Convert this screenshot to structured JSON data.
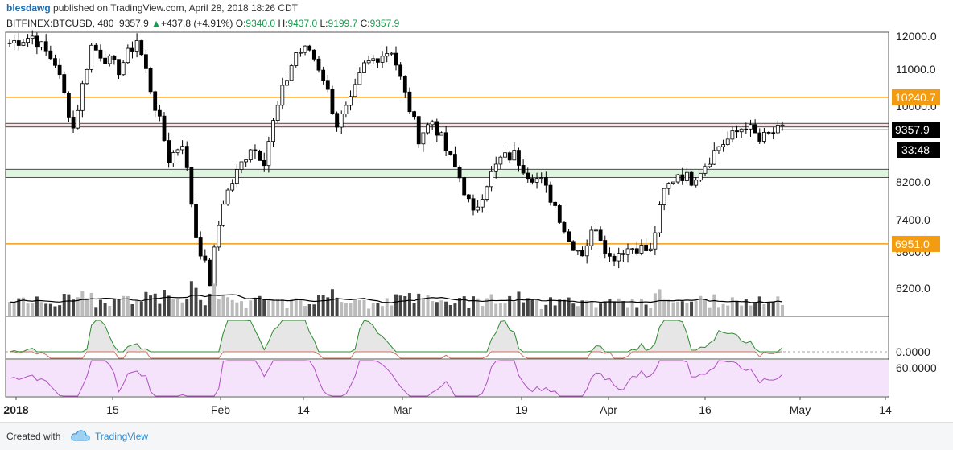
{
  "header": {
    "user": "blesdawg",
    "published": "published on TradingView.com, April 28, 2018 18:26 CDT",
    "symbol": "BITFINEX:BTCUSD, 480",
    "last": "9357.9",
    "change": "+437.8 (+4.91%)",
    "o_label": "O:",
    "o": "9340.0",
    "h_label": "H:",
    "h": "9437.0",
    "l_label": "L:",
    "l": "9199.7",
    "c_label": "C:",
    "c": "9357.9"
  },
  "footer": {
    "created": "Created with",
    "brand": "TradingView"
  },
  "colors": {
    "bg": "#ffffff",
    "candle": "#000000",
    "level": "#f39c12",
    "resistance_fill": "#f7e4e4",
    "support_fill": "#dff5df",
    "volume": "#444444",
    "osc_up": "#2e8b2e",
    "osc_down": "#d0705f",
    "rsi": "#b04fc1",
    "rsi_fill": "#f4e3fb",
    "label_dark": "#000000"
  },
  "chart_data": {
    "type": "candlestick",
    "x_ticks": [
      "2018",
      "15",
      "Feb",
      "14",
      "Mar",
      "19",
      "Apr",
      "16",
      "May",
      "14"
    ],
    "y_ticks": [
      "12000.0",
      "11000.0",
      "10000.0",
      "8200.0",
      "7400.0",
      "6800.0",
      "6200.0"
    ],
    "y_range": [
      5750,
      12100
    ],
    "price_labels": {
      "upper_level": "10240.7",
      "last": "9357.9",
      "countdown": "33:48",
      "lower_level": "6951.0"
    },
    "horizontal_levels": [
      10240.7,
      6951.0
    ],
    "zones": [
      {
        "name": "resistance",
        "low": 9430,
        "high": 9530
      },
      {
        "name": "support",
        "low": 8300,
        "high": 8480
      }
    ],
    "price_anchors": [
      [
        0,
        11800
      ],
      [
        5,
        12000
      ],
      [
        10,
        11200
      ],
      [
        14,
        9400
      ],
      [
        18,
        11700
      ],
      [
        24,
        11000
      ],
      [
        28,
        11900
      ],
      [
        32,
        10000
      ],
      [
        35,
        8700
      ],
      [
        38,
        9100
      ],
      [
        41,
        7100
      ],
      [
        44,
        6300
      ],
      [
        47,
        7800
      ],
      [
        50,
        8400
      ],
      [
        53,
        9000
      ],
      [
        56,
        8700
      ],
      [
        60,
        10400
      ],
      [
        63,
        11500
      ],
      [
        66,
        11600
      ],
      [
        69,
        10800
      ],
      [
        72,
        9500
      ],
      [
        75,
        10100
      ],
      [
        78,
        11100
      ],
      [
        81,
        11400
      ],
      [
        84,
        11600
      ],
      [
        87,
        10300
      ],
      [
        90,
        9200
      ],
      [
        93,
        9600
      ],
      [
        96,
        8900
      ],
      [
        99,
        8300
      ],
      [
        102,
        7500
      ],
      [
        105,
        8200
      ],
      [
        108,
        8700
      ],
      [
        111,
        8800
      ],
      [
        114,
        8400
      ],
      [
        117,
        8200
      ],
      [
        120,
        7700
      ],
      [
        123,
        7000
      ],
      [
        126,
        6800
      ],
      [
        129,
        7300
      ],
      [
        132,
        6700
      ],
      [
        135,
        6850
      ],
      [
        138,
        6900
      ],
      [
        141,
        6800
      ],
      [
        144,
        8000
      ],
      [
        147,
        8400
      ],
      [
        150,
        8250
      ],
      [
        153,
        8600
      ],
      [
        156,
        9000
      ],
      [
        159,
        9200
      ],
      [
        162,
        9500
      ],
      [
        165,
        9100
      ],
      [
        168,
        9300
      ],
      [
        170,
        9360
      ]
    ],
    "oscillator": {
      "zero_label": "0.0000"
    },
    "rsi": {
      "label": "60.0000"
    }
  }
}
